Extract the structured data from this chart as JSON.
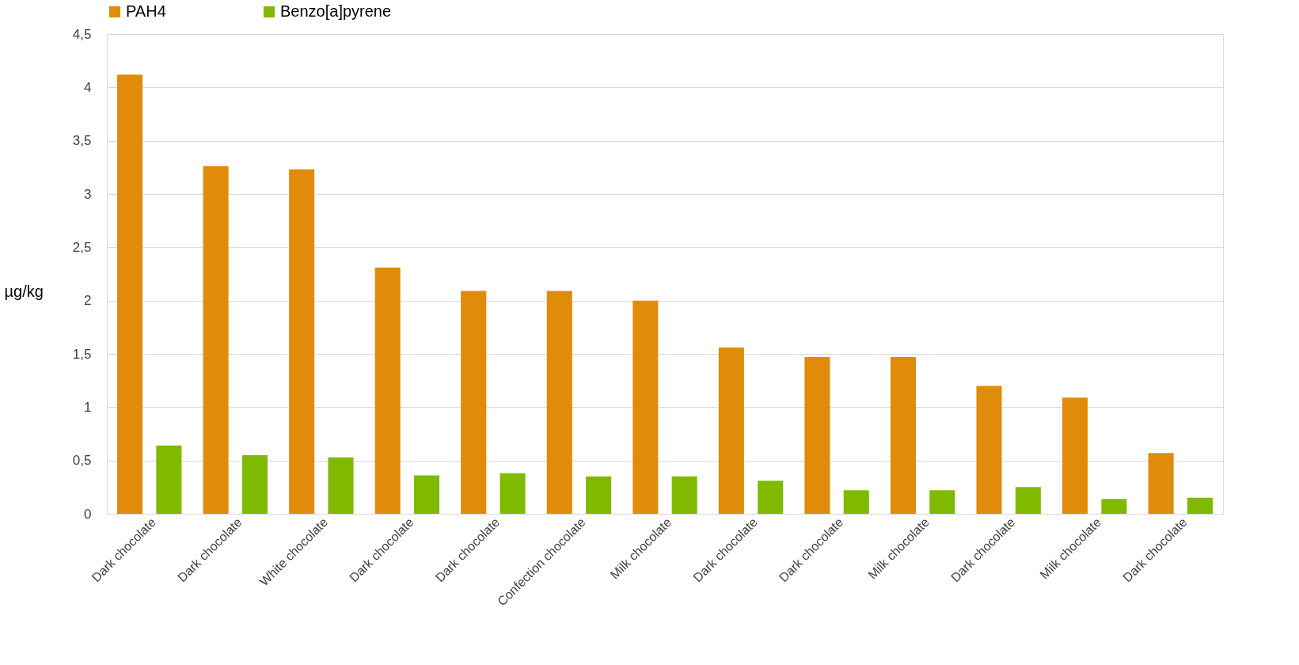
{
  "chart_data": {
    "type": "bar",
    "ylabel": "µg/kg",
    "categories": [
      "Dark chocolate",
      "Dark chocolate",
      "White chocolate",
      "Dark chocolate",
      "Dark chocolate",
      "Confection chocolate",
      "Milk chocolate",
      "Dark chocolate",
      "Dark chocolate",
      "Milk chocolate",
      "Dark chocolate",
      "Milk chocolate",
      "Dark chocolate"
    ],
    "series": [
      {
        "name": "PAH4",
        "color": "#e08c0a",
        "values": [
          4.12,
          3.26,
          3.23,
          2.31,
          2.09,
          2.09,
          2.0,
          1.56,
          1.47,
          1.47,
          1.2,
          1.09,
          0.57
        ]
      },
      {
        "name": "Benzo[a]pyrene",
        "color": "#7fba00",
        "values": [
          0.64,
          0.55,
          0.53,
          0.36,
          0.38,
          0.35,
          0.35,
          0.31,
          0.22,
          0.22,
          0.25,
          0.14,
          0.15
        ]
      }
    ],
    "ylim": [
      0,
      4.5
    ],
    "yticks": [
      0,
      {
        "value": 0.5,
        "label": "0,5"
      },
      1,
      {
        "value": 1.5,
        "label": "1,5"
      },
      2,
      {
        "value": 2.5,
        "label": "2,5"
      },
      3,
      {
        "value": 3.5,
        "label": "3,5"
      },
      4,
      {
        "value": 4.5,
        "label": "4,5"
      }
    ],
    "grid": "y",
    "legend": "top"
  }
}
